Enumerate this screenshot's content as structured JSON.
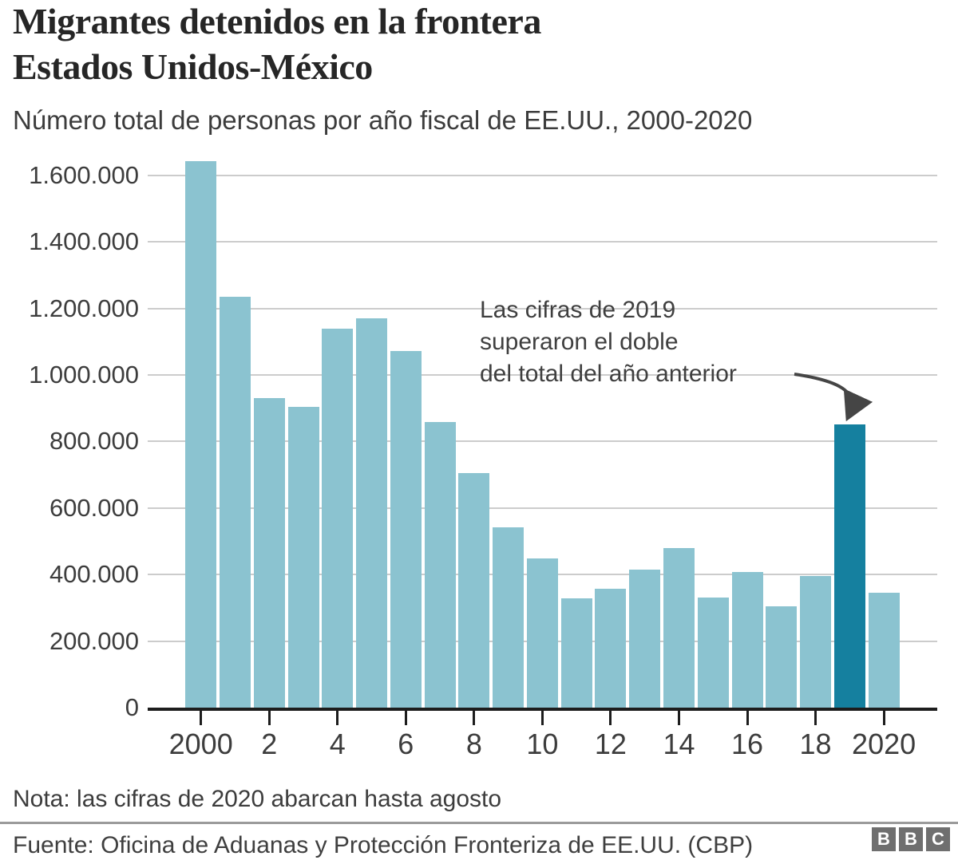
{
  "header": {
    "title_line1": "Migrantes detenidos en la frontera",
    "title_line2": "Estados Unidos-México",
    "subtitle": "Número total de personas por año fiscal de EE.UU., 2000-2020"
  },
  "chart_data": {
    "type": "bar",
    "title": "Migrantes detenidos en la frontera Estados Unidos-México",
    "subtitle": "Número total de personas por año fiscal de EE.UU., 2000-2020",
    "categories": [
      2000,
      2001,
      2002,
      2003,
      2004,
      2005,
      2006,
      2007,
      2008,
      2009,
      2010,
      2011,
      2012,
      2013,
      2014,
      2015,
      2016,
      2017,
      2018,
      2019,
      2020
    ],
    "values": [
      1643679,
      1235718,
      929809,
      905065,
      1139282,
      1171396,
      1071972,
      858638,
      705005,
      540865,
      447731,
      327577,
      356873,
      414397,
      479371,
      331333,
      408870,
      303916,
      396579,
      851508,
      345000
    ],
    "highlight_year": 2019,
    "ylim": [
      0,
      1700000
    ],
    "grid": true,
    "legend": "none",
    "y_ticks": [
      {
        "label": "1.600.000",
        "value": 1600000
      },
      {
        "label": "1.400.000",
        "value": 1400000
      },
      {
        "label": "1.200.000",
        "value": 1200000
      },
      {
        "label": "1.000.000",
        "value": 1000000
      },
      {
        "label": "800.000",
        "value": 800000
      },
      {
        "label": "600.000",
        "value": 600000
      },
      {
        "label": "400.000",
        "value": 400000
      },
      {
        "label": "200.000",
        "value": 200000
      },
      {
        "label": "0",
        "value": 0
      }
    ],
    "x_ticks": [
      {
        "label": "2000",
        "year": 2000
      },
      {
        "label": "2",
        "year": 2002
      },
      {
        "label": "4",
        "year": 2004
      },
      {
        "label": "6",
        "year": 2006
      },
      {
        "label": "8",
        "year": 2008
      },
      {
        "label": "10",
        "year": 2010
      },
      {
        "label": "12",
        "year": 2012
      },
      {
        "label": "14",
        "year": 2014
      },
      {
        "label": "16",
        "year": 2016
      },
      {
        "label": "18",
        "year": 2018
      },
      {
        "label": "2020",
        "year": 2020
      }
    ],
    "annotation": {
      "lines": [
        "Las cifras de 2019",
        "superaron el doble",
        "del total del año anterior"
      ],
      "target_year": 2019
    },
    "colors": {
      "bar": "#8bc3d0",
      "highlight": "#15809f",
      "grid": "#cccccc",
      "axis": "#1d1d1d",
      "text": "#3d3d3d"
    }
  },
  "footer": {
    "note": "Nota: las cifras de 2020 abarcan hasta agosto",
    "source": "Fuente: Oficina de Aduanas y Protección Fronteriza de EE.UU. (CBP)",
    "logo_letters": [
      "B",
      "B",
      "C"
    ]
  }
}
